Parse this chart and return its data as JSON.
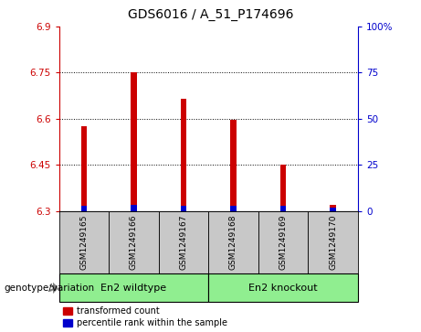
{
  "title": "GDS6016 / A_51_P174696",
  "samples": [
    "GSM1249165",
    "GSM1249166",
    "GSM1249167",
    "GSM1249168",
    "GSM1249169",
    "GSM1249170"
  ],
  "red_values": [
    6.575,
    6.75,
    6.665,
    6.595,
    6.45,
    6.32
  ],
  "blue_values": [
    6.315,
    6.32,
    6.315,
    6.315,
    6.315,
    6.31
  ],
  "ymin": 6.3,
  "ymax": 6.9,
  "yticks_left": [
    6.3,
    6.45,
    6.6,
    6.75,
    6.9
  ],
  "yticks_right": [
    0,
    25,
    50,
    75,
    100
  ],
  "groups": [
    {
      "label": "En2 wildtype",
      "start": 0,
      "end": 3,
      "color": "#90EE90"
    },
    {
      "label": "En2 knockout",
      "start": 3,
      "end": 6,
      "color": "#90EE90"
    }
  ],
  "group_label_prefix": "genotype/variation",
  "legend_red": "transformed count",
  "legend_blue": "percentile rank within the sample",
  "bar_width": 0.12,
  "bar_color_red": "#cc0000",
  "bar_color_blue": "#0000cc",
  "sample_box_color": "#c8c8c8",
  "plot_bg": "#ffffff",
  "left_tick_color": "#cc0000",
  "right_tick_color": "#0000cc",
  "grid_color": "#000000",
  "title_fontsize": 10,
  "tick_fontsize": 7.5,
  "sample_fontsize": 6.5,
  "group_fontsize": 8,
  "legend_fontsize": 7
}
